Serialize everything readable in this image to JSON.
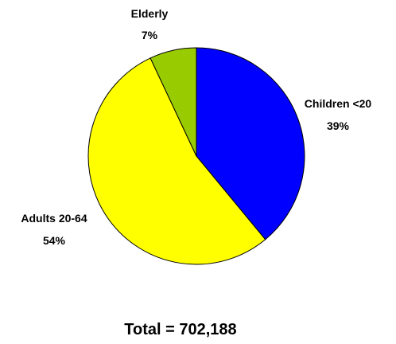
{
  "chart_data": {
    "type": "pie",
    "slices": [
      {
        "name": "Children <20",
        "value": 39,
        "label": "39%",
        "color": "#0000ff"
      },
      {
        "name": "Adults 20-64",
        "value": 54,
        "label": "54%",
        "color": "#ffff00"
      },
      {
        "name": "Elderly",
        "value": 7,
        "label": "7%",
        "color": "#99cc00"
      }
    ],
    "total_text": "Total = 702,188",
    "outline_color": "#000000"
  }
}
